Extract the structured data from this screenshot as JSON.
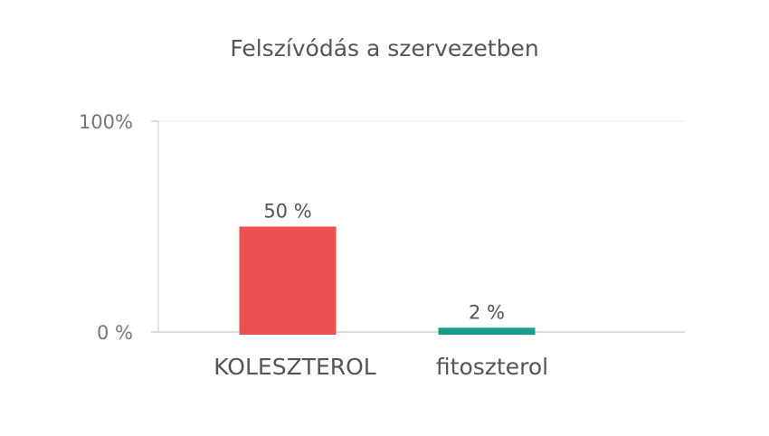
{
  "chart_data": {
    "type": "bar",
    "title": "Felszívódás a szervezetben",
    "categories": [
      "KOLESZTEROL",
      "fitoszterol"
    ],
    "values": [
      50,
      2
    ],
    "value_labels": [
      "50 %",
      "2 %"
    ],
    "ylim": [
      0,
      100
    ],
    "yticks": [
      {
        "value": 0,
        "label": "0 %"
      },
      {
        "value": 100,
        "label": "100%"
      }
    ],
    "xlabel": "",
    "ylabel": "",
    "colors": [
      "#ed4e4f",
      "#169e8b"
    ],
    "grid": true
  }
}
